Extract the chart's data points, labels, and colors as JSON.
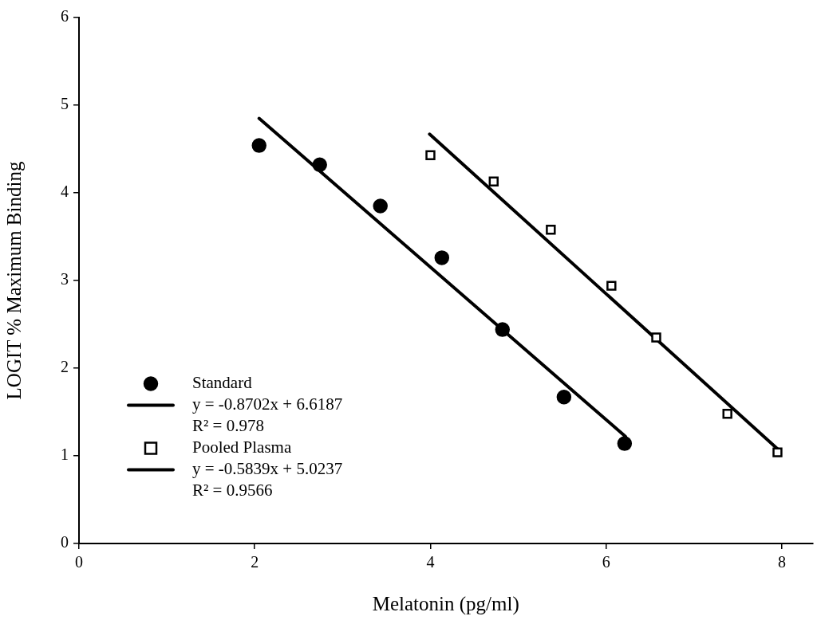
{
  "chart_data": {
    "type": "scatter",
    "xlabel": "Melatonin (pg/ml)",
    "ylabel": "LOGIT % Maximum Binding",
    "xlim": [
      0,
      8.35
    ],
    "xticks": [
      0,
      2,
      4,
      6,
      8
    ],
    "ylim": [
      0,
      6
    ],
    "yticks": [
      0,
      1,
      2,
      3,
      4,
      5,
      6
    ],
    "grid": false,
    "legend": "bottom left",
    "series": [
      {
        "name": "Standard",
        "marker": "circle",
        "color": "#000000",
        "x": [
          2.05,
          2.74,
          3.43,
          4.13,
          4.82,
          5.52,
          6.21
        ],
        "values": [
          4.54,
          4.32,
          3.85,
          3.26,
          2.44,
          1.67,
          1.14
        ]
      },
      {
        "type": "line",
        "marker": "none",
        "color": "#000000",
        "x": [
          2.05,
          6.22
        ],
        "values": [
          4.85,
          1.22
        ]
      },
      {
        "name": "Pooled Plasma",
        "marker": "square",
        "color": "#000000",
        "x": [
          4.0,
          4.72,
          5.37,
          6.06,
          6.57,
          7.38,
          7.95
        ],
        "values": [
          4.43,
          4.13,
          3.58,
          2.94,
          2.35,
          1.48,
          1.04
        ]
      },
      {
        "type": "line",
        "marker": "none",
        "color": "#000000",
        "x": [
          3.99,
          7.95
        ],
        "values": [
          4.67,
          1.08
        ]
      }
    ],
    "annotations": [
      "y = -0.8702x + 6.6187",
      "R² = 0.978",
      "y = -0.5839x + 5.0237",
      "R² = 0.9566"
    ]
  }
}
